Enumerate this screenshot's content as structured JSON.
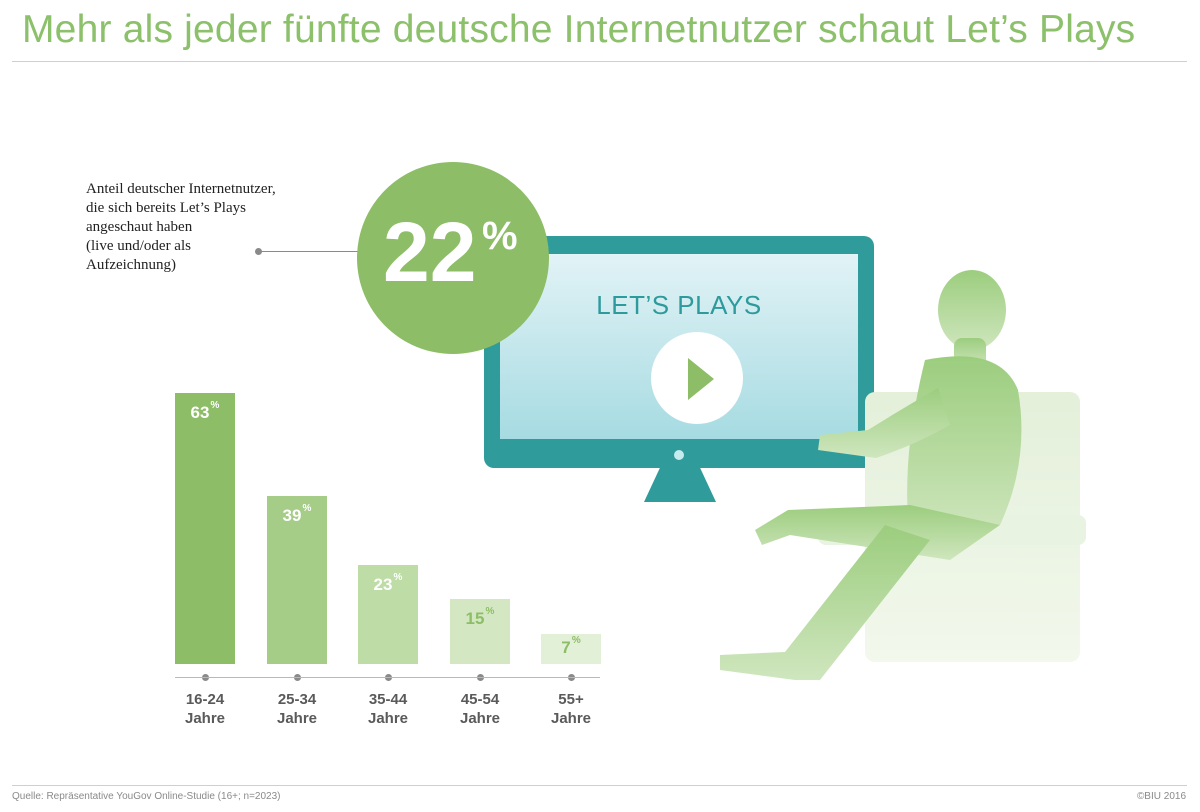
{
  "title": "Mehr als jeder fünfte deutsche Internetnutzer schaut Let’s Plays",
  "callout": {
    "text": "Anteil deutscher Internetnutzer,\ndie sich bereits Let’s Plays\nangeschaut haben\n(live und/oder als\nAufzeichnung)",
    "value": "22",
    "unit": "%"
  },
  "screen_label": "LET’S PLAYS",
  "footer": {
    "source": "Quelle: Repräsentative YouGov Online-Studie (16+; n=2023)",
    "copyright": "©BIU 2016"
  },
  "colors": {
    "title": "#8cc06a",
    "circle": "#8dbd66",
    "monitor": "#2f9b9b",
    "bars": [
      "#8dbd66",
      "#a6cd87",
      "#bedca6",
      "#d3e8c2",
      "#e3f0d8"
    ],
    "bar_labels": [
      "#ffffff",
      "#ffffff",
      "#ffffff",
      "#8dbd66",
      "#8dbd66"
    ]
  },
  "icons": {
    "play": "play-icon",
    "monitor": "monitor-icon",
    "person": "seated-person-silhouette"
  },
  "chart_data": {
    "type": "bar",
    "title": "Mehr als jeder fünfte deutsche Internetnutzer schaut Let’s Plays",
    "categories": [
      "16-24\nJahre",
      "25-34\nJahre",
      "35-44\nJahre",
      "45-54\nJahre",
      "55+\nJahre"
    ],
    "values": [
      63,
      39,
      23,
      15,
      7
    ],
    "value_labels": [
      "63",
      "39",
      "23",
      "15",
      "7"
    ],
    "unit": "%",
    "xlabel": "",
    "ylabel": "",
    "ylim": [
      0,
      63
    ],
    "grid": false,
    "legend": "none"
  }
}
